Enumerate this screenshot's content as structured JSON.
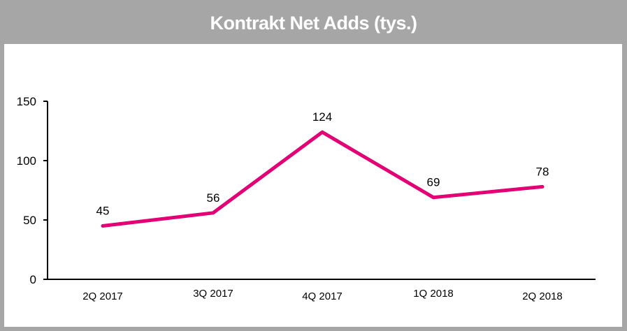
{
  "chart_data": {
    "type": "line",
    "title": "Kontrakt Net Adds (tys.)",
    "categories": [
      "2Q 2017",
      "3Q 2017",
      "4Q 2017",
      "1Q 2018",
      "2Q 2018"
    ],
    "series": [
      {
        "name": "Kontrakt Net Adds",
        "values": [
          45,
          56,
          124,
          69,
          78
        ],
        "color": "#e20074"
      }
    ],
    "data_labels": [
      "45",
      "56",
      "124",
      "69",
      "78"
    ],
    "yticks": [
      "0",
      "50",
      "100",
      "150"
    ],
    "ylim": [
      0,
      150
    ],
    "xlabel": "",
    "ylabel": "",
    "grid": false,
    "legend": "none"
  }
}
